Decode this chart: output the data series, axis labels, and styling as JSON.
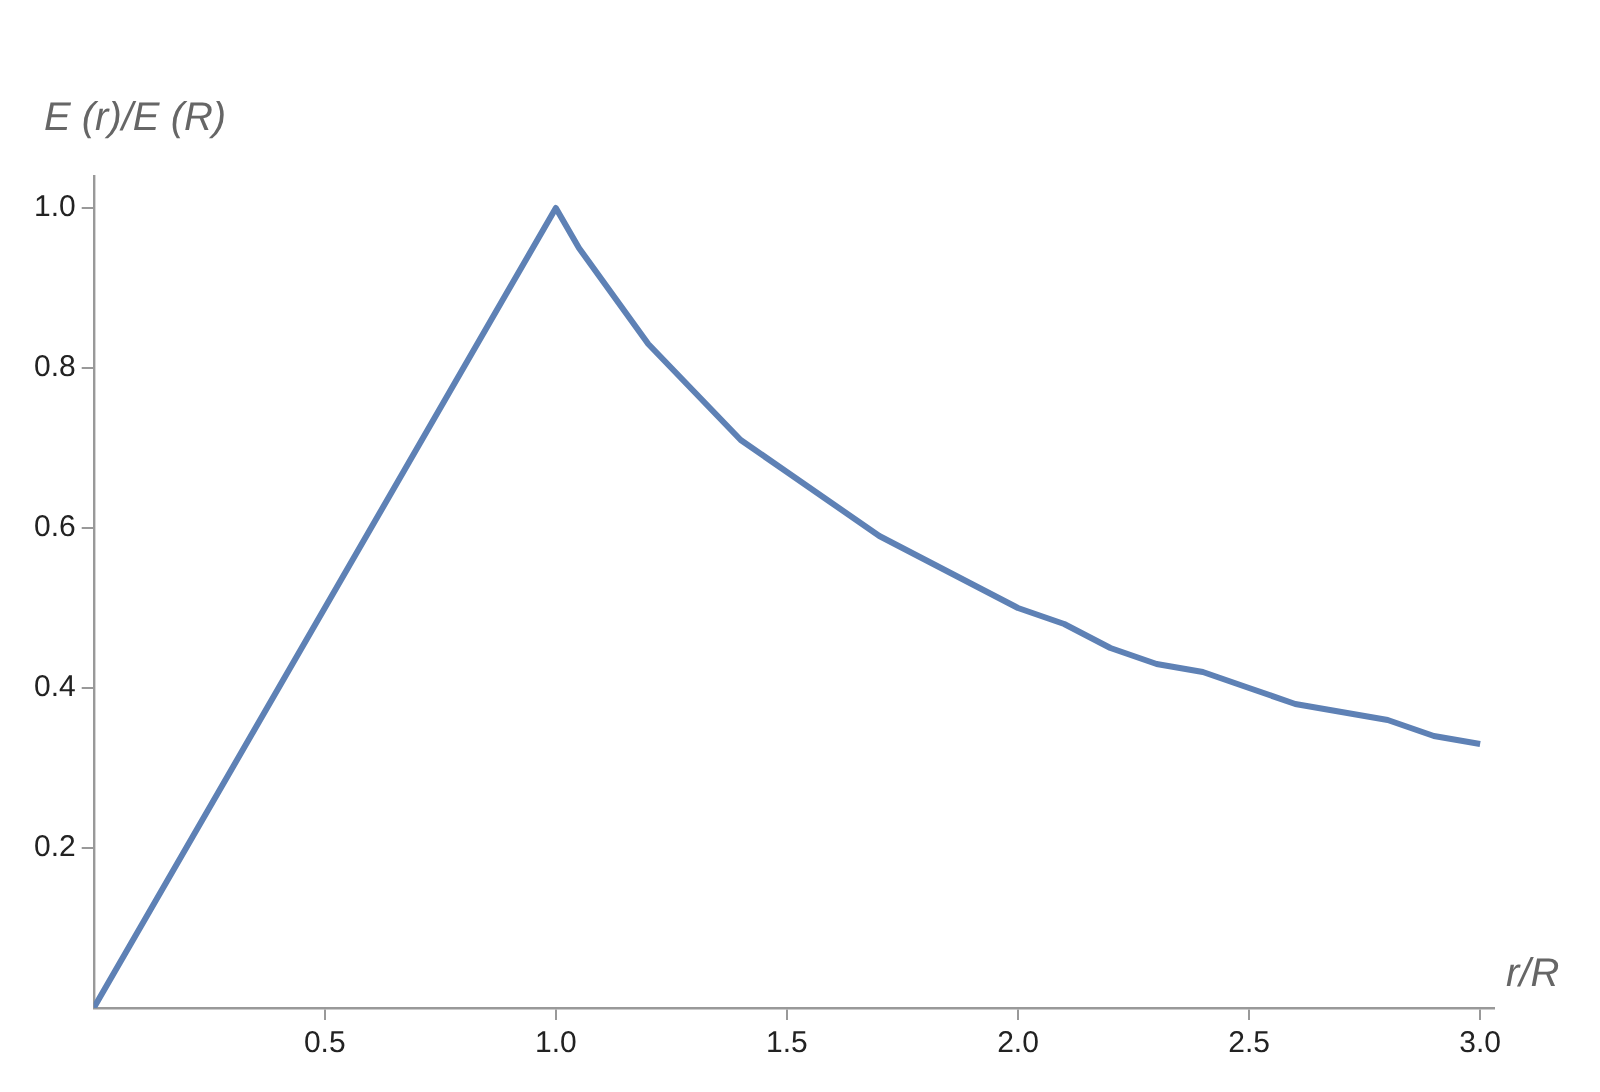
{
  "chart_data": {
    "type": "line",
    "xlabel": "r/R",
    "ylabel": "E (r)/E (R)",
    "x": [
      0,
      0.5,
      1.0,
      1.05,
      1.1,
      1.15,
      1.2,
      1.25,
      1.3,
      1.35,
      1.4,
      1.5,
      1.6,
      1.7,
      1.8,
      1.9,
      2.0,
      2.1,
      2.2,
      2.3,
      2.4,
      2.5,
      2.6,
      2.7,
      2.8,
      2.9,
      3.0
    ],
    "series": [
      {
        "color": "#5e81b5",
        "values": [
          0,
          0.5,
          1.0,
          0.95,
          0.91,
          0.87,
          0.83,
          0.8,
          0.77,
          0.74,
          0.71,
          0.67,
          0.63,
          0.59,
          0.56,
          0.53,
          0.5,
          0.48,
          0.45,
          0.43,
          0.42,
          0.4,
          0.38,
          0.37,
          0.36,
          0.34,
          0.33
        ]
      }
    ],
    "xlim": [
      0,
      3.03
    ],
    "ylim": [
      0,
      1.04
    ],
    "xticks": [
      0.5,
      {
        "value": 1,
        "label": "1.0"
      },
      1.5,
      {
        "value": 2,
        "label": "2.0"
      },
      2.5,
      {
        "value": 3,
        "label": "3.0"
      }
    ],
    "yticks": [
      0.2,
      0.4,
      0.6,
      0.8,
      {
        "value": 1,
        "label": "1.0"
      }
    ],
    "grid": false,
    "legend": false,
    "marker": "none",
    "line_style": "solid"
  }
}
